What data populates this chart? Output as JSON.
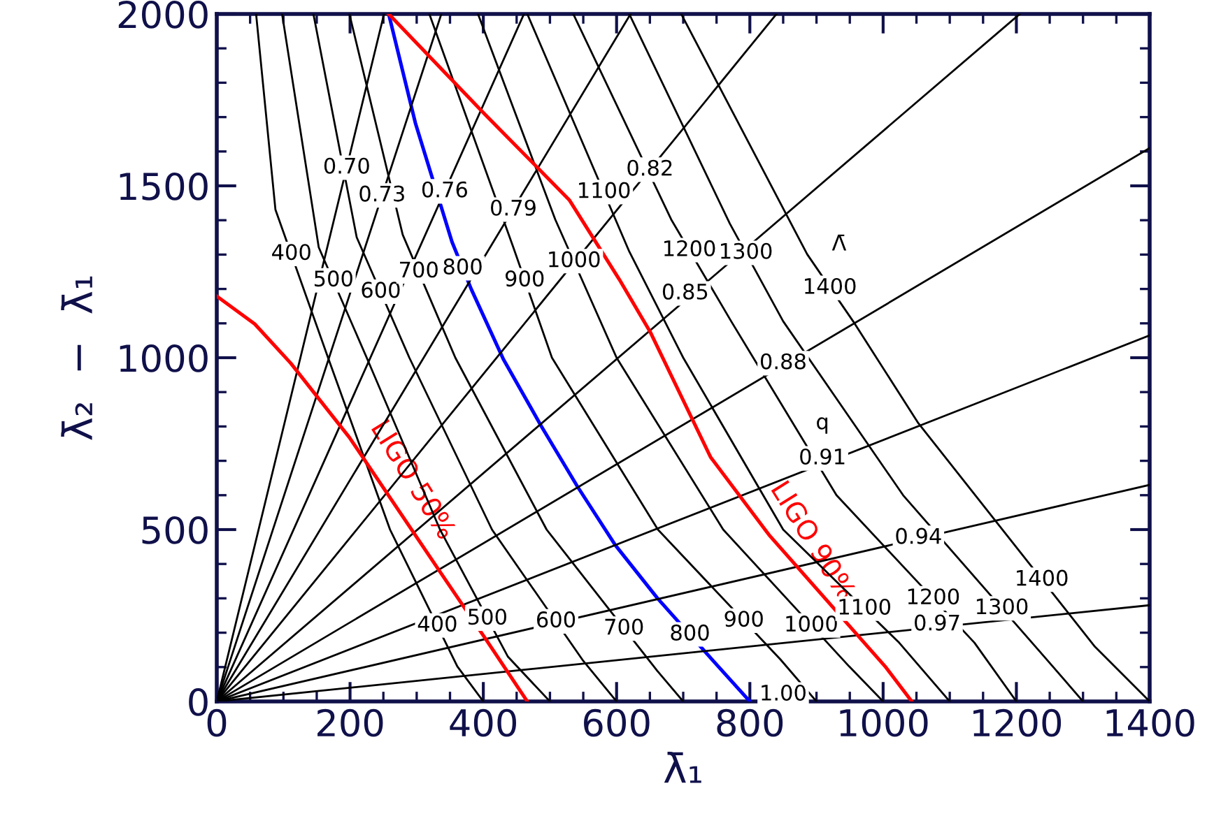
{
  "chart_data": {
    "type": "line",
    "xlabel": "λ̄₁",
    "ylabel": "λ̄₂  −  λ̄₁",
    "xlim": [
      0,
      1400
    ],
    "ylim": [
      0,
      2000
    ],
    "xticks": [
      0,
      200,
      400,
      600,
      800,
      1000,
      1200,
      1400
    ],
    "yticks": [
      0,
      500,
      1000,
      1500,
      2000
    ],
    "grid": false,
    "legend": false,
    "marker": "none",
    "line_style": "solid",
    "series": [
      {
        "color": "#000000",
        "x": [
          59,
          88,
          167,
          260,
          361,
          400
        ],
        "values": [
          2000,
          1431,
          1000,
          500,
          102,
          0
        ]
      },
      {
        "color": "#000000",
        "x": [
          98,
          153,
          225,
          335,
          437,
          500
        ],
        "values": [
          2000,
          1321,
          1000,
          500,
          130,
          0
        ]
      },
      {
        "color": "#000000",
        "x": [
          145,
          210,
          289,
          413,
          550,
          600
        ],
        "values": [
          2000,
          1350,
          1000,
          500,
          118,
          0
        ]
      },
      {
        "color": "#000000",
        "x": [
          199,
          279,
          358,
          495,
          661,
          700
        ],
        "values": [
          2000,
          1358,
          1000,
          500,
          89,
          0
        ]
      },
      {
        "color": "#0000ff",
        "x": [
          258,
          298,
          353,
          382,
          430,
          487,
          541,
          598,
          661,
          745,
          800
        ],
        "values": [
          2000,
          1683,
          1337,
          1199,
          996,
          801,
          626,
          455,
          301,
          118,
          0
        ]
      },
      {
        "color": "#000000",
        "x": [
          319,
          445,
          503,
          662,
          846,
          900
        ],
        "values": [
          2000,
          1321,
          1000,
          500,
          122,
          0
        ]
      },
      {
        "color": "#000000",
        "x": [
          392,
          508,
          600,
          760,
          949,
          1000
        ],
        "values": [
          2000,
          1402,
          1000,
          500,
          102,
          0
        ]
      },
      {
        "color": "#000000",
        "x": [
          466,
          619,
          700,
          850,
          1024,
          1100
        ],
        "values": [
          2000,
          1309,
          1000,
          500,
          171,
          0
        ]
      },
      {
        "color": "#000000",
        "x": [
          535,
          682,
          772,
          930,
          1137,
          1200
        ],
        "values": [
          2000,
          1402,
          1106,
          600,
          171,
          0
        ]
      },
      {
        "color": "#000000",
        "x": [
          619,
          770,
          850,
          1030,
          1242,
          1300
        ],
        "values": [
          2000,
          1390,
          1106,
          600,
          130,
          0
        ]
      },
      {
        "color": "#000000",
        "x": [
          697,
          886,
          955,
          1053,
          1318,
          1400
        ],
        "values": [
          2000,
          1301,
          1106,
          809,
          159,
          0
        ]
      },
      {
        "color": "#000000",
        "x": [
          0,
          251
        ],
        "values": [
          0,
          2000
        ]
      },
      {
        "color": "#000000",
        "x": [
          0,
          337
        ],
        "values": [
          0,
          2000
        ]
      },
      {
        "color": "#000000",
        "x": [
          0,
          461
        ],
        "values": [
          0,
          2000
        ]
      },
      {
        "color": "#000000",
        "x": [
          0,
          621
        ],
        "values": [
          0,
          2000
        ]
      },
      {
        "color": "#000000",
        "x": [
          0,
          840
        ],
        "values": [
          0,
          2000
        ]
      },
      {
        "color": "#000000",
        "x": [
          0,
          1205
        ],
        "values": [
          0,
          2000
        ]
      },
      {
        "color": "#000000",
        "x": [
          0,
          1400
        ],
        "values": [
          0,
          1610
        ]
      },
      {
        "color": "#000000",
        "x": [
          0,
          1400
        ],
        "values": [
          0,
          1065
        ]
      },
      {
        "color": "#000000",
        "x": [
          0,
          1400
        ],
        "values": [
          0,
          630
        ]
      },
      {
        "color": "#000000",
        "x": [
          0,
          1400
        ],
        "values": [
          0,
          280
        ]
      },
      {
        "color": "#ff0000",
        "x": [
          0,
          57,
          111,
          199,
          332,
          403,
          466
        ],
        "values": [
          1179,
          1098,
          984,
          768,
          386,
          183,
          0
        ]
      },
      {
        "color": "#ff0000",
        "x": [
          258,
          403,
          529,
          604,
          651,
          741,
          829,
          1003,
          1043
        ],
        "values": [
          2000,
          1707,
          1459,
          1228,
          1073,
          711,
          484,
          102,
          0
        ]
      }
    ],
    "annotations": [
      {
        "text": "400",
        "x": 112,
        "y": 1302
      },
      {
        "text": "500",
        "x": 175,
        "y": 1225
      },
      {
        "text": "600",
        "x": 246,
        "y": 1192
      },
      {
        "text": "700",
        "x": 303,
        "y": 1251
      },
      {
        "text": "800",
        "x": 369,
        "y": 1260
      },
      {
        "text": "900",
        "x": 462,
        "y": 1225
      },
      {
        "text": "1000",
        "x": 536,
        "y": 1281
      },
      {
        "text": "1100",
        "x": 581,
        "y": 1482
      },
      {
        "text": "1200",
        "x": 709,
        "y": 1313
      },
      {
        "text": "1300",
        "x": 794,
        "y": 1305
      },
      {
        "text": "1400",
        "x": 920,
        "y": 1203
      },
      {
        "text": "400",
        "x": 331,
        "y": 221
      },
      {
        "text": "500",
        "x": 406,
        "y": 241
      },
      {
        "text": "600",
        "x": 509,
        "y": 233
      },
      {
        "text": "700",
        "x": 611,
        "y": 212
      },
      {
        "text": "800",
        "x": 710,
        "y": 195
      },
      {
        "text": "900",
        "x": 791,
        "y": 235
      },
      {
        "text": "1000",
        "x": 892,
        "y": 221
      },
      {
        "text": "1100",
        "x": 972,
        "y": 270
      },
      {
        "text": "1200",
        "x": 1075,
        "y": 300
      },
      {
        "text": "1300",
        "x": 1178,
        "y": 271
      },
      {
        "text": "1400",
        "x": 1238,
        "y": 354
      },
      {
        "text": "0.70",
        "x": 195,
        "y": 1553
      },
      {
        "text": "0.73",
        "x": 248,
        "y": 1472
      },
      {
        "text": "0.76",
        "x": 342,
        "y": 1484
      },
      {
        "text": "0.79",
        "x": 445,
        "y": 1431
      },
      {
        "text": "0.82",
        "x": 650,
        "y": 1547
      },
      {
        "text": "0.85",
        "x": 703,
        "y": 1187
      },
      {
        "text": "0.88",
        "x": 850,
        "y": 984
      },
      {
        "text": "0.91",
        "x": 909,
        "y": 707
      },
      {
        "text": "0.94",
        "x": 1053,
        "y": 476
      },
      {
        "text": "0.97",
        "x": 1081,
        "y": 224
      },
      {
        "text": "1.00",
        "x": 850,
        "y": 20
      },
      {
        "text": "Λ̄",
        "x": 934,
        "y": 1329
      },
      {
        "text": "q",
        "x": 909,
        "y": 809
      },
      {
        "text": "LIGO 50%",
        "x": 258,
        "y": 598
      },
      {
        "text": "LIGO 90%",
        "x": 858,
        "y": 420
      }
    ]
  }
}
